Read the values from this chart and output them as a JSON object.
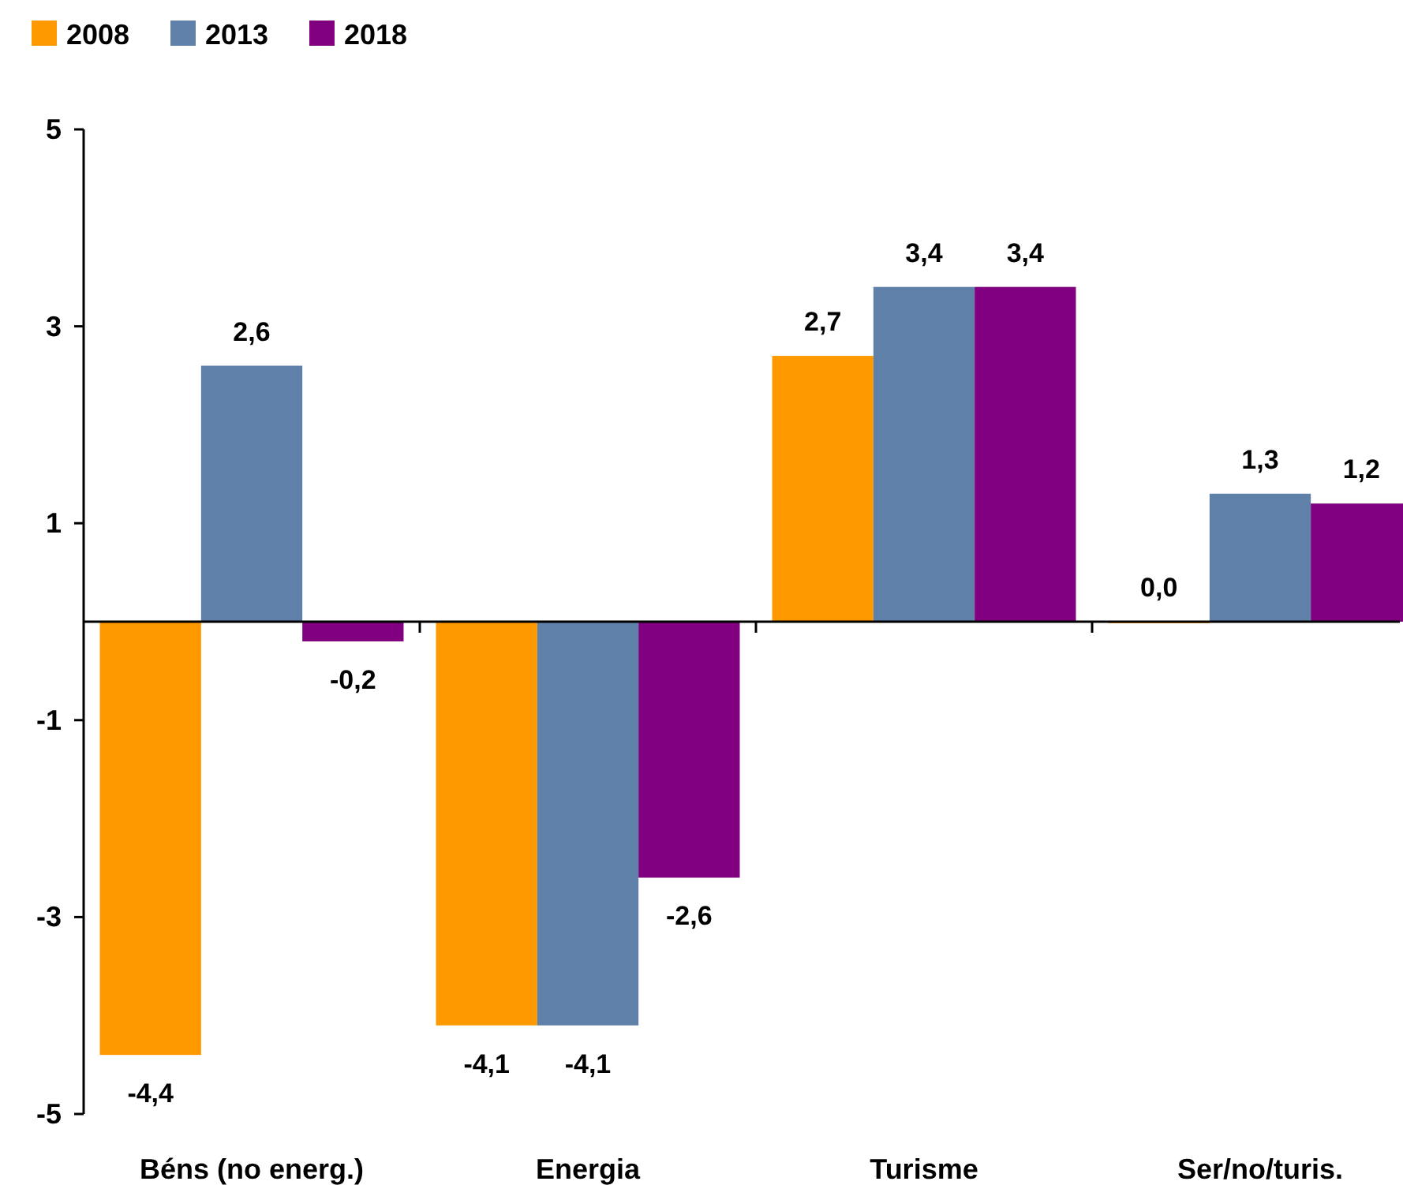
{
  "chart_data": {
    "type": "bar",
    "categories": [
      "Béns (no energ.)",
      "Energia",
      "Turisme",
      "Ser/no/turis."
    ],
    "series": [
      {
        "name": "2008",
        "color": "#ff9900",
        "values": [
          -4.4,
          -4.1,
          2.7,
          0.0
        ],
        "value_labels": [
          "-4,4",
          "-4,1",
          "2,7",
          "0,0"
        ]
      },
      {
        "name": "2013",
        "color": "#5f81a9",
        "values": [
          2.6,
          -4.1,
          3.4,
          1.3
        ],
        "value_labels": [
          "2,6",
          "-4,1",
          "3,4",
          "1,3"
        ]
      },
      {
        "name": "2018",
        "color": "#800080",
        "values": [
          -0.2,
          -2.6,
          3.4,
          1.2
        ],
        "value_labels": [
          "-0,2",
          "-2,6",
          "3,4",
          "1,2"
        ]
      }
    ],
    "ylim": [
      -5,
      5
    ],
    "yticks": [
      -5,
      -3,
      -1,
      1,
      3,
      5
    ],
    "grid": false,
    "legend": "top left"
  }
}
